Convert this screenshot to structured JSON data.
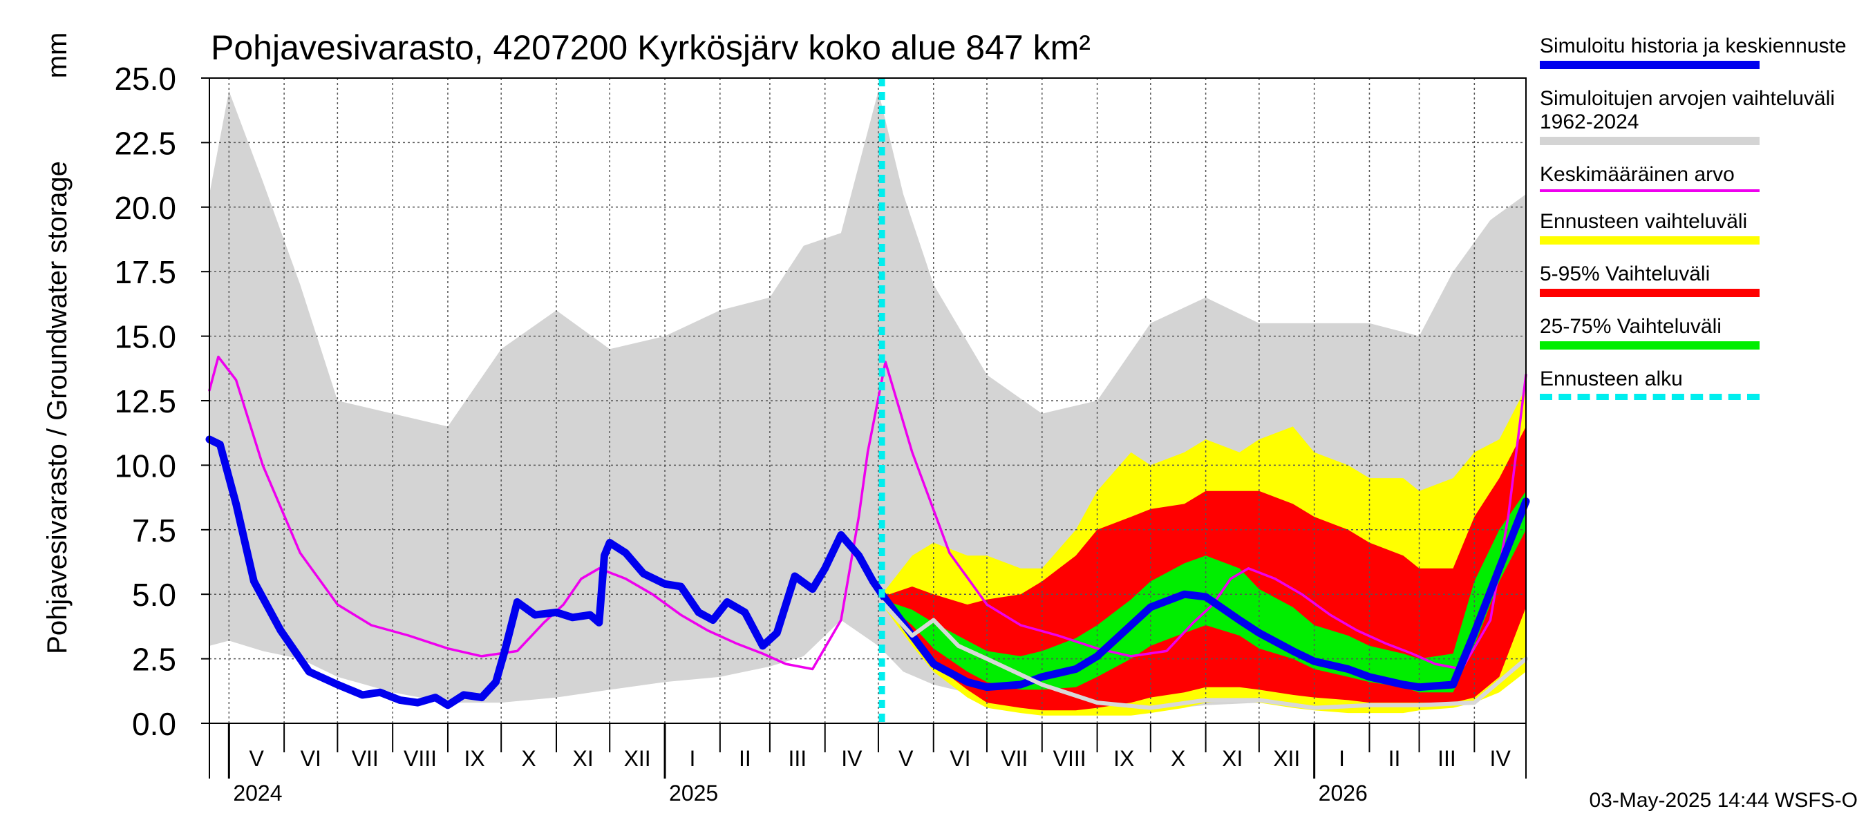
{
  "chart_data": {
    "type": "area",
    "title": "Pohjavesivarasto, 4207200 Kyrkösjärv koko alue 847 km²",
    "ylabel": "Pohjavesivarasto / Groundwater storage",
    "yunit": "mm",
    "ylim": [
      0,
      25
    ],
    "yticks": [
      "0.0",
      "2.5",
      "5.0",
      "7.5",
      "10.0",
      "12.5",
      "15.0",
      "17.5",
      "20.0",
      "22.5",
      "25.0"
    ],
    "x_range": [
      "2024-04-20",
      "2026-04-30"
    ],
    "forecast_start": "2025-05-03",
    "months": [
      {
        "label": "V",
        "start": "2024-05-01"
      },
      {
        "label": "VI",
        "start": "2024-06-01"
      },
      {
        "label": "VII",
        "start": "2024-07-01"
      },
      {
        "label": "VIII",
        "start": "2024-08-01"
      },
      {
        "label": "IX",
        "start": "2024-09-01"
      },
      {
        "label": "X",
        "start": "2024-10-01"
      },
      {
        "label": "XI",
        "start": "2024-11-01"
      },
      {
        "label": "XII",
        "start": "2024-12-01"
      },
      {
        "label": "I",
        "start": "2025-01-01"
      },
      {
        "label": "II",
        "start": "2025-02-01"
      },
      {
        "label": "III",
        "start": "2025-03-01"
      },
      {
        "label": "IV",
        "start": "2025-04-01"
      },
      {
        "label": "V",
        "start": "2025-05-01"
      },
      {
        "label": "VI",
        "start": "2025-06-01"
      },
      {
        "label": "VII",
        "start": "2025-07-01"
      },
      {
        "label": "VIII",
        "start": "2025-08-01"
      },
      {
        "label": "IX",
        "start": "2025-09-01"
      },
      {
        "label": "X",
        "start": "2025-10-01"
      },
      {
        "label": "XI",
        "start": "2025-11-01"
      },
      {
        "label": "XII",
        "start": "2025-12-01"
      },
      {
        "label": "I",
        "start": "2026-01-01"
      },
      {
        "label": "II",
        "start": "2026-02-01"
      },
      {
        "label": "III",
        "start": "2026-03-01"
      },
      {
        "label": "IV",
        "start": "2026-04-01"
      }
    ],
    "years": [
      {
        "label": "2024",
        "start": "2024-05-01"
      },
      {
        "label": "2025",
        "start": "2025-01-01"
      },
      {
        "label": "2026",
        "start": "2026-01-01"
      }
    ],
    "legend": [
      {
        "label": "Simuloitu historia ja keskiennuste",
        "color": "#0000ee"
      },
      {
        "label": "Simuloitujen arvojen vaihteluväli 1962-2024",
        "color": "#d4d4d4"
      },
      {
        "label": "Keskimääräinen arvo",
        "color": "#ee00ee"
      },
      {
        "label": "Ennusteen vaihteluväli",
        "color": "#ffff00"
      },
      {
        "label": "5-95% Vaihteluväli",
        "color": "#ff0000"
      },
      {
        "label": "25-75% Vaihteluväli",
        "color": "#00ee00"
      },
      {
        "label": "Ennusteen alku",
        "color": "#00eeee"
      }
    ],
    "series": [
      {
        "name": "Simuloitujen arvojen vaihteluväli 1962-2024",
        "kind": "band",
        "color": "#d4d4d4",
        "x": [
          "2024-04-20",
          "2024-05-01",
          "2024-05-20",
          "2024-06-10",
          "2024-07-01",
          "2024-08-01",
          "2024-09-01",
          "2024-10-01",
          "2024-11-01",
          "2024-12-01",
          "2025-01-01",
          "2025-02-01",
          "2025-03-01",
          "2025-03-20",
          "2025-04-10",
          "2025-05-01",
          "2025-05-15",
          "2025-06-01",
          "2025-07-01",
          "2025-08-01",
          "2025-09-01",
          "2025-10-01",
          "2025-11-01",
          "2025-12-01",
          "2026-01-01",
          "2026-02-01",
          "2026-03-01",
          "2026-03-20",
          "2026-04-10",
          "2026-04-30"
        ],
        "low": [
          3.0,
          3.2,
          2.8,
          2.5,
          1.8,
          1.2,
          0.8,
          0.8,
          1.0,
          1.3,
          1.6,
          1.8,
          2.2,
          2.6,
          4.0,
          3.0,
          2.0,
          1.5,
          1.0,
          0.8,
          0.6,
          0.5,
          0.7,
          0.8,
          0.9,
          1.0,
          1.0,
          1.2,
          2.0,
          2.0
        ],
        "high": [
          20.5,
          24.5,
          21.0,
          17.0,
          12.5,
          12.0,
          11.5,
          14.5,
          16.0,
          14.5,
          15.0,
          16.0,
          16.5,
          18.5,
          19.0,
          24.5,
          20.5,
          17.0,
          13.5,
          12.0,
          12.5,
          15.5,
          16.5,
          15.5,
          15.5,
          15.5,
          15.0,
          17.5,
          19.5,
          20.5
        ]
      },
      {
        "name": "Ennusteen vaihteluväli",
        "kind": "band",
        "color": "#ffff00",
        "x": [
          "2025-05-03",
          "2025-05-20",
          "2025-06-01",
          "2025-06-20",
          "2025-07-01",
          "2025-07-20",
          "2025-08-01",
          "2025-08-20",
          "2025-09-01",
          "2025-09-20",
          "2025-10-01",
          "2025-10-20",
          "2025-11-01",
          "2025-11-20",
          "2025-12-01",
          "2025-12-20",
          "2026-01-01",
          "2026-01-20",
          "2026-02-01",
          "2026-02-20",
          "2026-03-01",
          "2026-03-20",
          "2026-04-01",
          "2026-04-15",
          "2026-04-30"
        ],
        "low": [
          4.6,
          3.0,
          2.0,
          1.0,
          0.6,
          0.4,
          0.3,
          0.3,
          0.3,
          0.3,
          0.4,
          0.6,
          0.8,
          0.9,
          0.8,
          0.6,
          0.5,
          0.4,
          0.4,
          0.4,
          0.5,
          0.6,
          0.8,
          1.2,
          2.0
        ],
        "high": [
          5.0,
          6.5,
          7.0,
          6.5,
          6.5,
          6.0,
          6.0,
          7.5,
          9.0,
          10.5,
          10.0,
          10.5,
          11.0,
          10.5,
          11.0,
          11.5,
          10.5,
          10.0,
          9.5,
          9.5,
          9.0,
          9.5,
          10.5,
          11.0,
          13.0
        ]
      },
      {
        "name": "5-95% Vaihteluväli",
        "kind": "band",
        "color": "#ff0000",
        "x": [
          "2025-05-03",
          "2025-05-20",
          "2025-06-01",
          "2025-06-20",
          "2025-07-01",
          "2025-07-20",
          "2025-08-01",
          "2025-08-20",
          "2025-09-01",
          "2025-09-20",
          "2025-10-01",
          "2025-10-20",
          "2025-11-01",
          "2025-11-20",
          "2025-12-01",
          "2025-12-20",
          "2026-01-01",
          "2026-01-20",
          "2026-02-01",
          "2026-02-20",
          "2026-03-01",
          "2026-03-20",
          "2026-04-01",
          "2026-04-15",
          "2026-04-30"
        ],
        "low": [
          4.7,
          3.3,
          2.3,
          1.3,
          0.8,
          0.6,
          0.5,
          0.5,
          0.6,
          0.8,
          1.0,
          1.2,
          1.4,
          1.4,
          1.3,
          1.1,
          1.0,
          0.9,
          0.8,
          0.8,
          0.8,
          0.8,
          1.0,
          1.8,
          4.5
        ],
        "high": [
          4.9,
          5.3,
          5.0,
          4.6,
          4.8,
          5.0,
          5.5,
          6.5,
          7.5,
          8.0,
          8.3,
          8.5,
          9.0,
          9.0,
          9.0,
          8.5,
          8.0,
          7.5,
          7.0,
          6.5,
          6.0,
          6.0,
          8.0,
          9.5,
          11.5
        ]
      },
      {
        "name": "25-75% Vaihteluväli",
        "kind": "band",
        "color": "#00ee00",
        "x": [
          "2025-05-03",
          "2025-05-20",
          "2025-06-01",
          "2025-06-20",
          "2025-07-01",
          "2025-07-20",
          "2025-08-01",
          "2025-08-20",
          "2025-09-01",
          "2025-09-20",
          "2025-10-01",
          "2025-10-20",
          "2025-11-01",
          "2025-11-20",
          "2025-12-01",
          "2025-12-20",
          "2026-01-01",
          "2026-01-20",
          "2026-02-01",
          "2026-02-20",
          "2026-03-01",
          "2026-03-20",
          "2026-04-01",
          "2026-04-15",
          "2026-04-30"
        ],
        "low": [
          4.8,
          3.8,
          2.9,
          2.0,
          1.6,
          1.3,
          1.3,
          1.4,
          1.8,
          2.5,
          3.0,
          3.5,
          3.8,
          3.4,
          2.9,
          2.5,
          2.1,
          1.8,
          1.6,
          1.4,
          1.2,
          1.2,
          3.0,
          5.5,
          7.5
        ],
        "high": [
          4.8,
          4.4,
          3.9,
          3.2,
          2.8,
          2.6,
          2.8,
          3.3,
          3.8,
          4.8,
          5.5,
          6.2,
          6.5,
          6.0,
          5.2,
          4.5,
          3.8,
          3.4,
          3.0,
          2.7,
          2.5,
          2.7,
          5.5,
          7.5,
          9.0
        ]
      },
      {
        "name": "Keskimääräinen arvo",
        "kind": "line",
        "color": "#ee00ee",
        "x": [
          "2024-04-20",
          "2024-04-25",
          "2024-05-05",
          "2024-05-20",
          "2024-06-10",
          "2024-07-01",
          "2024-07-20",
          "2024-08-10",
          "2024-09-01",
          "2024-09-20",
          "2024-10-10",
          "2024-10-25",
          "2024-11-05",
          "2024-11-15",
          "2024-11-25",
          "2024-12-10",
          "2024-12-25",
          "2025-01-10",
          "2025-01-25",
          "2025-02-10",
          "2025-02-25",
          "2025-03-10",
          "2025-03-25",
          "2025-04-10",
          "2025-04-20",
          "2025-04-25",
          "2025-05-05",
          "2025-05-20",
          "2025-06-10",
          "2025-07-01",
          "2025-07-20",
          "2025-08-10",
          "2025-09-01",
          "2025-09-20",
          "2025-10-10",
          "2025-10-25",
          "2025-11-05",
          "2025-11-15",
          "2025-11-25",
          "2025-12-10",
          "2025-12-25",
          "2026-01-10",
          "2026-01-25",
          "2026-02-10",
          "2026-02-25",
          "2026-03-10",
          "2026-03-25",
          "2026-04-10",
          "2026-04-20",
          "2026-04-30"
        ],
        "y": [
          12.9,
          14.2,
          13.3,
          10.0,
          6.6,
          4.6,
          3.8,
          3.4,
          2.9,
          2.6,
          2.8,
          3.9,
          4.6,
          5.6,
          6.0,
          5.6,
          5.0,
          4.2,
          3.6,
          3.1,
          2.7,
          2.3,
          2.1,
          4.0,
          8.0,
          10.5,
          14.0,
          10.5,
          6.6,
          4.6,
          3.8,
          3.4,
          2.9,
          2.6,
          2.8,
          3.9,
          4.6,
          5.6,
          6.0,
          5.6,
          5.0,
          4.2,
          3.6,
          3.1,
          2.7,
          2.3,
          2.1,
          4.0,
          8.0,
          13.5
        ]
      },
      {
        "name": "Simuloitu historia ja keskiennuste",
        "kind": "line",
        "color": "#0000ee",
        "x": [
          "2024-04-20",
          "2024-04-26",
          "2024-05-05",
          "2024-05-15",
          "2024-05-30",
          "2024-06-15",
          "2024-07-01",
          "2024-07-15",
          "2024-07-25",
          "2024-08-05",
          "2024-08-15",
          "2024-08-25",
          "2024-09-01",
          "2024-09-10",
          "2024-09-20",
          "2024-09-28",
          "2024-10-03",
          "2024-10-10",
          "2024-10-20",
          "2024-11-01",
          "2024-11-10",
          "2024-11-20",
          "2024-11-25",
          "2024-11-28",
          "2024-12-01",
          "2024-12-10",
          "2024-12-20",
          "2025-01-01",
          "2025-01-10",
          "2025-01-20",
          "2025-01-28",
          "2025-02-05",
          "2025-02-15",
          "2025-02-25",
          "2025-03-05",
          "2025-03-15",
          "2025-03-25",
          "2025-04-01",
          "2025-04-10",
          "2025-04-20",
          "2025-04-28",
          "2025-05-03",
          "2025-05-20",
          "2025-06-01",
          "2025-06-20",
          "2025-07-01",
          "2025-07-20",
          "2025-08-01",
          "2025-08-20",
          "2025-09-01",
          "2025-09-20",
          "2025-10-01",
          "2025-10-20",
          "2025-11-01",
          "2025-11-20",
          "2025-12-01",
          "2025-12-20",
          "2026-01-01",
          "2026-01-20",
          "2026-02-01",
          "2026-02-20",
          "2026-03-01",
          "2026-03-20",
          "2026-04-01",
          "2026-04-15",
          "2026-04-30"
        ],
        "y": [
          11.0,
          10.8,
          8.5,
          5.5,
          3.6,
          2.0,
          1.5,
          1.1,
          1.2,
          0.9,
          0.8,
          1.0,
          0.7,
          1.1,
          1.0,
          1.6,
          2.8,
          4.7,
          4.2,
          4.3,
          4.1,
          4.2,
          3.9,
          6.5,
          7.0,
          6.6,
          5.8,
          5.4,
          5.3,
          4.3,
          4.0,
          4.7,
          4.3,
          3.0,
          3.5,
          5.7,
          5.2,
          6.0,
          7.3,
          6.5,
          5.5,
          5.0,
          3.4,
          2.3,
          1.6,
          1.4,
          1.5,
          1.8,
          2.1,
          2.6,
          3.8,
          4.5,
          5.0,
          4.9,
          4.0,
          3.5,
          2.8,
          2.4,
          2.1,
          1.8,
          1.5,
          1.4,
          1.5,
          3.5,
          6.0,
          8.6
        ]
      },
      {
        "name": "",
        "kind": "line",
        "color": "#d8d8d8",
        "x": [
          "2025-05-03",
          "2025-05-20",
          "2025-06-01",
          "2025-06-15",
          "2025-07-01",
          "2025-08-01",
          "2025-09-01",
          "2025-10-01",
          "2025-11-01",
          "2025-12-01",
          "2026-01-01",
          "2026-02-01",
          "2026-03-01",
          "2026-04-01",
          "2026-04-30"
        ],
        "y": [
          4.7,
          3.4,
          4.0,
          3.0,
          2.5,
          1.5,
          0.8,
          0.6,
          0.9,
          0.9,
          0.6,
          0.7,
          0.7,
          0.8,
          2.5
        ]
      }
    ]
  },
  "legend": [
    {
      "label": "Simuloitu historia ja keskiennuste",
      "color": "#0000ee",
      "style": "solid"
    },
    {
      "label": "Simuloitujen arvojen vaihteluväli 1962-2024",
      "color": "#d4d4d4",
      "style": "solid"
    },
    {
      "label": "Keskimääräinen arvo",
      "color": "#ee00ee",
      "style": "thin"
    },
    {
      "label": "Ennusteen vaihteluväli",
      "color": "#ffff00",
      "style": "solid"
    },
    {
      "label": "5-95% Vaihteluväli",
      "color": "#ff0000",
      "style": "solid"
    },
    {
      "label": "25-75% Vaihteluväli",
      "color": "#00ee00",
      "style": "solid"
    },
    {
      "label": "Ennusteen alku",
      "color": "#00eeee",
      "style": "dashed"
    }
  ],
  "footer": "03-May-2025 14:44 WSFS-O"
}
